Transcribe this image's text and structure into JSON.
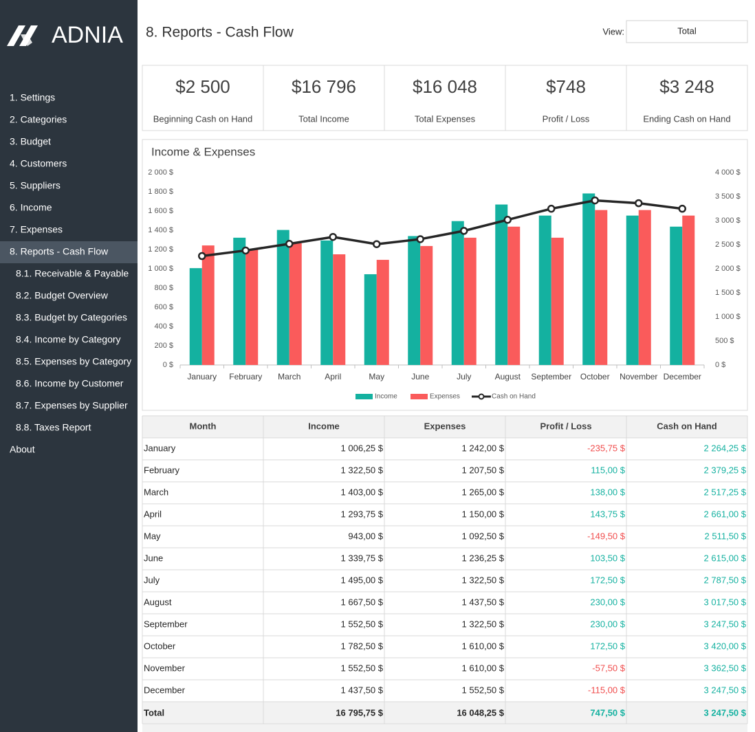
{
  "sidebar": {
    "logo": "ADNIA",
    "menu": [
      "1. Settings",
      "2. Categories",
      "3. Budget",
      "4. Customers",
      "5. Suppliers",
      "6. Income",
      "7. Expenses",
      "8. Reports - Cash Flow",
      "8.1. Receivable & Payable",
      "8.2. Budget Overview",
      "8.3. Budget by Categories",
      "8.4. Income by Category",
      "8.5. Expenses by Category",
      "8.6. Income by Customer",
      "8.7. Expenses by Supplier",
      "8.8. Taxes Report",
      "About"
    ],
    "selected": 7
  },
  "header": {
    "title": "8. Reports - Cash Flow",
    "view_label": "View:",
    "view_value": "Total"
  },
  "kpis": [
    {
      "value": "$2 500",
      "label": "Beginning Cash on Hand"
    },
    {
      "value": "$16 796",
      "label": "Total Income"
    },
    {
      "value": "$16 048",
      "label": "Total Expenses"
    },
    {
      "value": "$748",
      "label": "Profit / Loss"
    },
    {
      "value": "$3 248",
      "label": "Ending Cash on Hand"
    }
  ],
  "chart_data": {
    "type": "bar",
    "title": "Income & Expenses",
    "categories": [
      "January",
      "February",
      "March",
      "April",
      "May",
      "June",
      "July",
      "August",
      "September",
      "October",
      "November",
      "December"
    ],
    "series": [
      {
        "name": "Income",
        "color": "#14b1a0",
        "values": [
          1006.25,
          1322.5,
          1403,
          1293.75,
          943,
          1339.75,
          1495,
          1667.5,
          1552.5,
          1782.5,
          1552.5,
          1437.5
        ]
      },
      {
        "name": "Expenses",
        "color": "#fa5b5b",
        "values": [
          1242,
          1207.5,
          1265,
          1150,
          1092.5,
          1236.25,
          1322.5,
          1437.5,
          1322.5,
          1610,
          1610,
          1552.5
        ]
      },
      {
        "name": "Cash on Hand",
        "type": "line",
        "axis": "y2",
        "color": "#262626",
        "values": [
          2264.25,
          2379.25,
          2517.25,
          2661,
          2511.5,
          2615,
          2787.5,
          3017.5,
          3247.5,
          3420,
          3362.5,
          3247.5
        ]
      }
    ],
    "ylim": [
      0,
      2000
    ],
    "yticks": [
      {
        "value": 0,
        "label": "0 $"
      },
      {
        "value": 200,
        "label": "200 $"
      },
      {
        "value": 400,
        "label": "400 $"
      },
      {
        "value": 600,
        "label": "600 $"
      },
      {
        "value": 800,
        "label": "800 $"
      },
      {
        "value": 1000,
        "label": "1 000 $"
      },
      {
        "value": 1200,
        "label": "1 200 $"
      },
      {
        "value": 1400,
        "label": "1 400 $"
      },
      {
        "value": 1600,
        "label": "1 600 $"
      },
      {
        "value": 1800,
        "label": "1 800 $"
      },
      {
        "value": 2000,
        "label": "2 000 $"
      }
    ],
    "y2lim": [
      0,
      4000
    ],
    "y2ticks": [
      {
        "value": 0,
        "label": "0 $"
      },
      {
        "value": 500,
        "label": "500 $"
      },
      {
        "value": 1000,
        "label": "1 000 $"
      },
      {
        "value": 1500,
        "label": "1 500 $"
      },
      {
        "value": 2000,
        "label": "2 000 $"
      },
      {
        "value": 2500,
        "label": "2 500 $"
      },
      {
        "value": 3000,
        "label": "3 000 $"
      },
      {
        "value": 3500,
        "label": "3 500 $"
      },
      {
        "value": 4000,
        "label": "4 000 $"
      }
    ],
    "legend": "bottom"
  },
  "table": {
    "columns": [
      "Month",
      "Income",
      "Expenses",
      "Profit / Loss",
      "Cash on Hand"
    ],
    "rows": [
      [
        "January",
        "1 006,25 $",
        "1 242,00 $",
        "-235,75 $",
        "2 264,25 $"
      ],
      [
        "February",
        "1 322,50 $",
        "1 207,50 $",
        "115,00 $",
        "2 379,25 $"
      ],
      [
        "March",
        "1 403,00 $",
        "1 265,00 $",
        "138,00 $",
        "2 517,25 $"
      ],
      [
        "April",
        "1 293,75 $",
        "1 150,00 $",
        "143,75 $",
        "2 661,00 $"
      ],
      [
        "May",
        "943,00 $",
        "1 092,50 $",
        "-149,50 $",
        "2 511,50 $"
      ],
      [
        "June",
        "1 339,75 $",
        "1 236,25 $",
        "103,50 $",
        "2 615,00 $"
      ],
      [
        "July",
        "1 495,00 $",
        "1 322,50 $",
        "172,50 $",
        "2 787,50 $"
      ],
      [
        "August",
        "1 667,50 $",
        "1 437,50 $",
        "230,00 $",
        "3 017,50 $"
      ],
      [
        "September",
        "1 552,50 $",
        "1 322,50 $",
        "230,00 $",
        "3 247,50 $"
      ],
      [
        "October",
        "1 782,50 $",
        "1 610,00 $",
        "172,50 $",
        "3 420,00 $"
      ],
      [
        "November",
        "1 552,50 $",
        "1 610,00 $",
        "-57,50 $",
        "3 362,50 $"
      ],
      [
        "December",
        "1 437,50 $",
        "1 552,50 $",
        "-115,00 $",
        "3 247,50 $"
      ]
    ],
    "total": [
      "Total",
      "16 795,75 $",
      "16 048,25 $",
      "747,50 $",
      "3 247,50 $"
    ]
  }
}
